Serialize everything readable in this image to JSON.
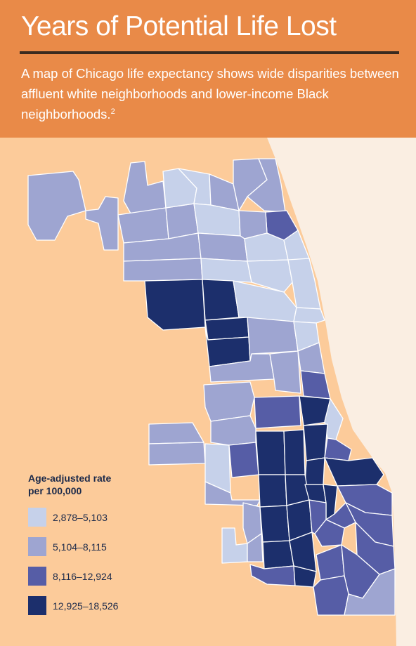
{
  "header": {
    "title": "Years of Potential Life Lost",
    "subtitle": "A map of Chicago life expectancy shows wide disparities between affluent white neighborhoods and lower-income Black neighborhoods.",
    "footnote": "2",
    "background_color": "#e98a48"
  },
  "map": {
    "subject": "Chicago community areas",
    "land_color": "#fccb9a",
    "lake_color": "#faeee2",
    "border_color": "#ffffff"
  },
  "legend": {
    "title_line1": "Age-adjusted rate",
    "title_line2": "per 100,000",
    "items": [
      {
        "label": "2,878–5,103",
        "color": "#c6d1ea"
      },
      {
        "label": "5,104–8,115",
        "color": "#9ea5d1"
      },
      {
        "label": "8,116–12,924",
        "color": "#565da6"
      },
      {
        "label": "12,925–18,526",
        "color": "#1c2f6c"
      }
    ]
  }
}
